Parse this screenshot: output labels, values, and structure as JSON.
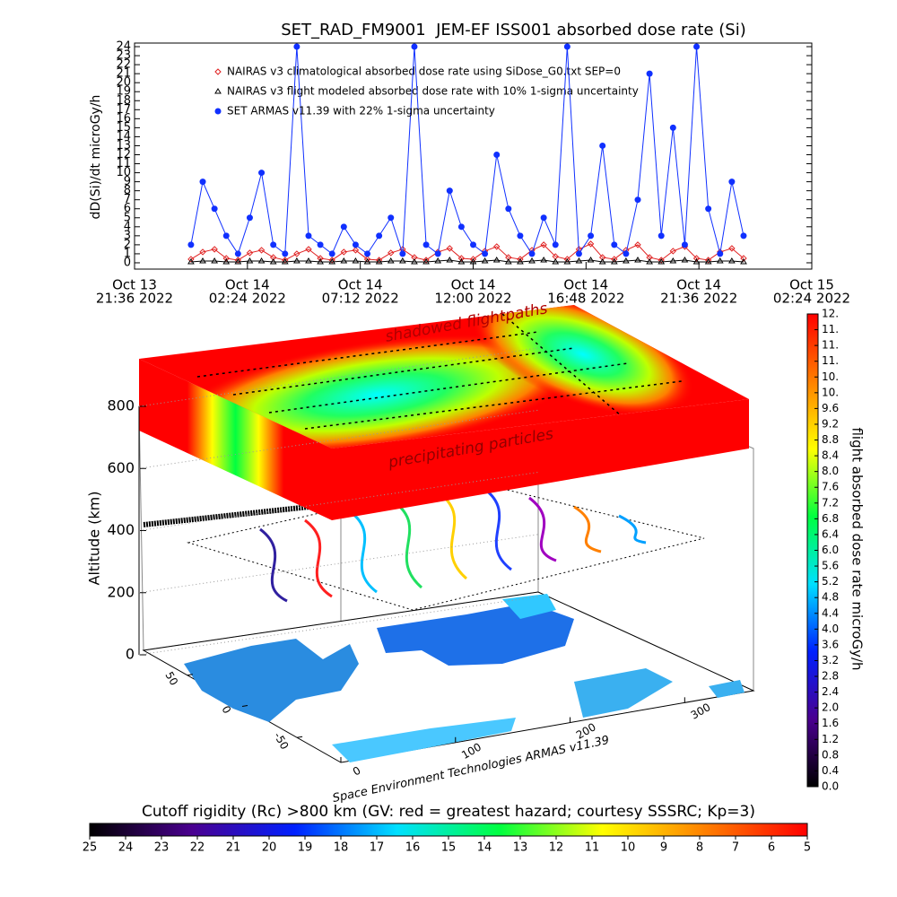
{
  "chart_data": [
    {
      "type": "line",
      "title": "SET_RAD_FM9001  JEM-EF ISS001 absorbed dose rate (Si)",
      "ylabel": "dD(Si)/dt microGy/h",
      "xlim": [
        "2022-10-13T21:36",
        "2022-10-15T02:24"
      ],
      "xticks": [
        {
          "value": "2022-10-13T21:36",
          "label": [
            "Oct 13",
            "21:36 2022"
          ]
        },
        {
          "value": "2022-10-14T02:24",
          "label": [
            "Oct 14",
            "02:24 2022"
          ]
        },
        {
          "value": "2022-10-14T07:12",
          "label": [
            "Oct 14",
            "07:12 2022"
          ]
        },
        {
          "value": "2022-10-14T12:00",
          "label": [
            "Oct 14",
            "12:00 2022"
          ]
        },
        {
          "value": "2022-10-14T16:48",
          "label": [
            "Oct 14",
            "16:48 2022"
          ]
        },
        {
          "value": "2022-10-14T21:36",
          "label": [
            "Oct 14",
            "21:36 2022"
          ]
        },
        {
          "value": "2022-10-15T02:24",
          "label": [
            "Oct 15",
            "02:24 2022"
          ]
        }
      ],
      "ylim": [
        -0.7,
        24.4
      ],
      "yticks": [
        0,
        1,
        2,
        3,
        4,
        5,
        6,
        7,
        8,
        9,
        10,
        11,
        12,
        13,
        14,
        15,
        16,
        17,
        18,
        19,
        20,
        21,
        22,
        23,
        24
      ],
      "x": [
        "2022-10-14T00:00",
        "2022-10-14T00:30",
        "2022-10-14T01:00",
        "2022-10-14T01:30",
        "2022-10-14T02:00",
        "2022-10-14T02:30",
        "2022-10-14T03:00",
        "2022-10-14T03:30",
        "2022-10-14T04:00",
        "2022-10-14T04:30",
        "2022-10-14T05:00",
        "2022-10-14T05:30",
        "2022-10-14T06:00",
        "2022-10-14T06:30",
        "2022-10-14T07:00",
        "2022-10-14T07:30",
        "2022-10-14T08:00",
        "2022-10-14T08:30",
        "2022-10-14T09:00",
        "2022-10-14T09:30",
        "2022-10-14T10:00",
        "2022-10-14T10:30",
        "2022-10-14T11:00",
        "2022-10-14T11:30",
        "2022-10-14T12:00",
        "2022-10-14T12:30",
        "2022-10-14T13:00",
        "2022-10-14T13:30",
        "2022-10-14T14:00",
        "2022-10-14T14:30",
        "2022-10-14T15:00",
        "2022-10-14T15:30",
        "2022-10-14T16:00",
        "2022-10-14T16:30",
        "2022-10-14T17:00",
        "2022-10-14T17:30",
        "2022-10-14T18:00",
        "2022-10-14T18:30",
        "2022-10-14T19:00",
        "2022-10-14T19:30",
        "2022-10-14T20:00",
        "2022-10-14T20:30",
        "2022-10-14T21:00",
        "2022-10-14T21:30",
        "2022-10-14T22:00",
        "2022-10-14T22:30",
        "2022-10-14T23:00",
        "2022-10-14T23:30"
      ],
      "series": [
        {
          "name": "NAIRAS v3 climatological absorbed dose rate using SiDose_G0.txt SEP=0",
          "color": "#e02020",
          "marker": "diamond",
          "values": [
            0.4,
            1.2,
            1.5,
            0.5,
            0.3,
            1.1,
            1.4,
            0.6,
            0.3,
            1.0,
            1.5,
            0.5,
            0.3,
            1.2,
            1.4,
            0.4,
            0.3,
            1.1,
            1.5,
            0.6,
            0.3,
            1.2,
            1.6,
            0.5,
            0.4,
            1.3,
            1.8,
            0.6,
            0.4,
            1.4,
            2.0,
            0.7,
            0.4,
            1.5,
            2.1,
            0.6,
            0.4,
            1.4,
            2.0,
            0.6,
            0.3,
            1.3,
            1.8,
            0.5,
            0.3,
            1.2,
            1.6,
            0.5
          ]
        },
        {
          "name": "NAIRAS v3 flight modeled absorbed dose rate with 10% 1-sigma uncertainty",
          "color": "#000000",
          "marker": "triangle",
          "values": [
            0.1,
            0.2,
            0.2,
            0.1,
            0.1,
            0.2,
            0.2,
            0.1,
            0.1,
            0.2,
            0.2,
            0.1,
            0.1,
            0.2,
            0.2,
            0.1,
            0.1,
            0.2,
            0.2,
            0.1,
            0.1,
            0.2,
            0.3,
            0.1,
            0.1,
            0.2,
            0.3,
            0.1,
            0.1,
            0.2,
            0.3,
            0.1,
            0.1,
            0.2,
            0.3,
            0.1,
            0.1,
            0.2,
            0.3,
            0.1,
            0.1,
            0.2,
            0.3,
            0.1,
            0.1,
            0.2,
            0.2,
            0.1
          ]
        },
        {
          "name": "SET ARMAS v11.39 with 22% 1-sigma uncertainty",
          "color": "#1030ff",
          "marker": "circle",
          "values": [
            2,
            9,
            6,
            3,
            1,
            5,
            10,
            2,
            1,
            24,
            3,
            2,
            1,
            4,
            2,
            1,
            3,
            5,
            1,
            24,
            2,
            1,
            8,
            4,
            2,
            1,
            12,
            6,
            3,
            1,
            5,
            2,
            24,
            1,
            3,
            13,
            2,
            1,
            7,
            21,
            3,
            15,
            2,
            24,
            6,
            1,
            9,
            3
          ]
        }
      ]
    },
    {
      "type": "surface3d",
      "zlabel": "Altitude (km)",
      "zlim": [
        0,
        800
      ],
      "zticks": [
        0,
        200,
        400,
        600,
        800
      ],
      "xlim": [
        0,
        360
      ],
      "xticks": [
        0,
        100,
        200,
        300
      ],
      "ylim": [
        -90,
        90
      ],
      "yticks": [
        -50,
        0,
        50
      ],
      "annotations": [
        "shadowed flightpaths",
        "precipitating particles",
        "Space Environment Technologies ARMAS v11.39"
      ]
    },
    {
      "type": "colorbar",
      "orientation": "vertical",
      "label": "flight absorbed dose rate microGy/h",
      "colors": [
        "#000000",
        "#4a0090",
        "#0020ff",
        "#00e0ff",
        "#00ff40",
        "#ffff00",
        "#ff8000",
        "#ff0000"
      ],
      "ylim": [
        0,
        12
      ],
      "yticks": [
        {
          "value": 0,
          "label": "0.0"
        },
        {
          "value": 0.4,
          "label": "0.4"
        },
        {
          "value": 0.8,
          "label": "0.8"
        },
        {
          "value": 1.2,
          "label": "1.2"
        },
        {
          "value": 1.6,
          "label": "1.6"
        },
        {
          "value": 2,
          "label": "2.0"
        },
        {
          "value": 2.4,
          "label": "2.4"
        },
        {
          "value": 2.8,
          "label": "2.8"
        },
        {
          "value": 3.2,
          "label": "3.2"
        },
        {
          "value": 3.6,
          "label": "3.6"
        },
        {
          "value": 4,
          "label": "4.0"
        },
        {
          "value": 4.4,
          "label": "4.4"
        },
        {
          "value": 4.8,
          "label": "4.8"
        },
        {
          "value": 5.2,
          "label": "5.2"
        },
        {
          "value": 5.6,
          "label": "5.6"
        },
        {
          "value": 6,
          "label": "6.0"
        },
        {
          "value": 6.4,
          "label": "6.4"
        },
        {
          "value": 6.8,
          "label": "6.8"
        },
        {
          "value": 7.2,
          "label": "7.2"
        },
        {
          "value": 7.6,
          "label": "7.6"
        },
        {
          "value": 8,
          "label": "8.0"
        },
        {
          "value": 8.4,
          "label": "8.4"
        },
        {
          "value": 8.8,
          "label": "8.8"
        },
        {
          "value": 9.2,
          "label": "9.2"
        },
        {
          "value": 9.6,
          "label": "9.6"
        },
        {
          "value": 10,
          "label": "10."
        },
        {
          "value": 10.4,
          "label": "10."
        },
        {
          "value": 10.8,
          "label": "11."
        },
        {
          "value": 11.2,
          "label": "11."
        },
        {
          "value": 11.6,
          "label": "11."
        },
        {
          "value": 12,
          "label": "12."
        }
      ]
    },
    {
      "type": "colorbar",
      "orientation": "horizontal",
      "label": "Cutoff rigidity (Rc) >800 km (GV: red = greatest hazard; courtesy SSSRC; Kp=3)",
      "colors": [
        "#000000",
        "#4a0090",
        "#0020ff",
        "#00e0ff",
        "#00ff40",
        "#ffff00",
        "#ff8000",
        "#ff0000"
      ],
      "xlim": [
        25,
        5
      ],
      "xticks": [
        25,
        24,
        23,
        22,
        21,
        20,
        19,
        18,
        17,
        16,
        15,
        14,
        13,
        12,
        11,
        10,
        9,
        8,
        7,
        6,
        5
      ]
    }
  ]
}
